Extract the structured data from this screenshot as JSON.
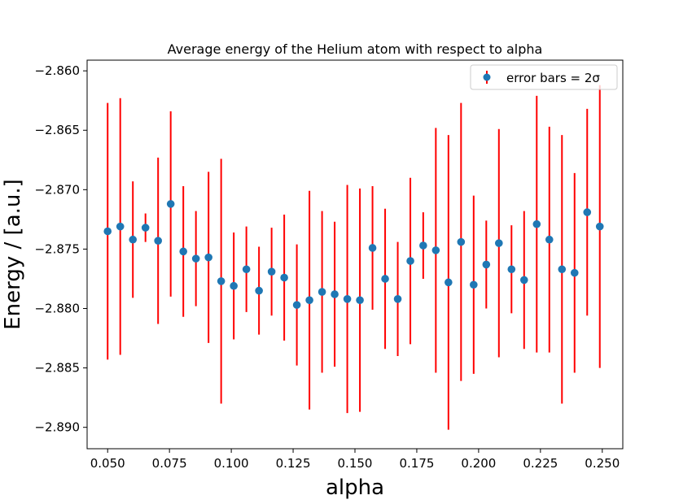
{
  "chart_data": {
    "type": "scatter",
    "title": "Average energy of the Helium atom with respect to alpha",
    "xlabel": "alpha",
    "ylabel": "Energy / [a.u.]",
    "xlim": [
      0.0417,
      0.2583
    ],
    "ylim": [
      -2.8918,
      -2.8591
    ],
    "xticks": [
      0.05,
      0.075,
      0.1,
      0.125,
      0.15,
      0.175,
      0.2,
      0.225,
      0.25
    ],
    "xtick_labels": [
      "0.050",
      "0.075",
      "0.100",
      "0.125",
      "0.150",
      "0.175",
      "0.200",
      "0.225",
      "0.250"
    ],
    "yticks": [
      -2.89,
      -2.885,
      -2.88,
      -2.875,
      -2.87,
      -2.865,
      -2.86
    ],
    "ytick_labels": [
      "−2.890",
      "−2.885",
      "−2.880",
      "−2.875",
      "−2.870",
      "−2.865",
      "−2.860"
    ],
    "grid": false,
    "legend": {
      "position": "top-right",
      "label": "error bars = 2σ"
    },
    "colors": {
      "point": "#1f77b4",
      "errorbar": "#ff0000"
    },
    "series": [
      {
        "name": "error bars = 2σ",
        "x": [
          0.05,
          0.0551,
          0.0602,
          0.0653,
          0.0704,
          0.0755,
          0.0806,
          0.0857,
          0.0908,
          0.0959,
          0.101,
          0.1061,
          0.1112,
          0.1163,
          0.1214,
          0.1265,
          0.1316,
          0.1367,
          0.1418,
          0.1469,
          0.152,
          0.1571,
          0.1622,
          0.1673,
          0.1724,
          0.1776,
          0.1827,
          0.1878,
          0.1929,
          0.198,
          0.2031,
          0.2082,
          0.2133,
          0.2184,
          0.2235,
          0.2286,
          0.2337,
          0.2388,
          0.2439,
          0.249
        ],
        "y": [
          -2.8735,
          -2.8731,
          -2.8742,
          -2.8732,
          -2.8743,
          -2.8712,
          -2.8752,
          -2.8758,
          -2.8757,
          -2.8777,
          -2.8781,
          -2.8767,
          -2.8785,
          -2.8769,
          -2.8774,
          -2.8797,
          -2.8793,
          -2.8786,
          -2.8788,
          -2.8792,
          -2.8793,
          -2.8749,
          -2.8775,
          -2.8792,
          -2.876,
          -2.8747,
          -2.8751,
          -2.8778,
          -2.8744,
          -2.878,
          -2.8763,
          -2.8745,
          -2.8767,
          -2.8776,
          -2.8729,
          -2.8742,
          -2.8767,
          -2.877,
          -2.8719,
          -2.8731
        ],
        "yerr": [
          0.0108,
          0.0108,
          0.0049,
          0.0012,
          0.007,
          0.0078,
          0.0055,
          0.004,
          0.0072,
          0.0103,
          0.0045,
          0.0036,
          0.0037,
          0.0037,
          0.0053,
          0.0051,
          0.0092,
          0.0068,
          0.0061,
          0.0096,
          0.0094,
          0.0052,
          0.0059,
          0.0048,
          0.007,
          0.0028,
          0.0103,
          0.0124,
          0.0117,
          0.0075,
          0.0037,
          0.0096,
          0.0037,
          0.0058,
          0.0108,
          0.0095,
          0.0113,
          0.0084,
          0.0087,
          0.0119
        ]
      }
    ]
  }
}
